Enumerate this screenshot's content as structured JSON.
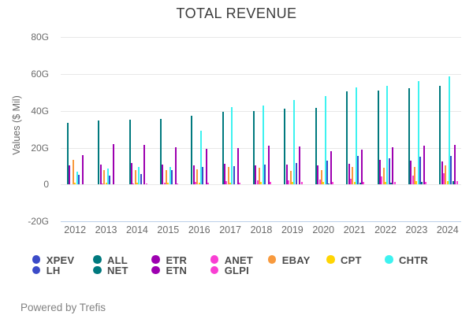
{
  "title": "TOTAL REVENUE",
  "footer": "Powered by Trefis",
  "chart_data": {
    "type": "bar",
    "title": "TOTAL REVENUE",
    "xlabel": "",
    "ylabel": "Values ($ Mil)",
    "unit": "G (billions of $)",
    "ylim": [
      -20,
      80
    ],
    "grid": true,
    "legend_position": "bottom",
    "y_ticks": [
      {
        "label": "80G",
        "value": 80
      },
      {
        "label": "60G",
        "value": 60
      },
      {
        "label": "40G",
        "value": 40
      },
      {
        "label": "20G",
        "value": 20
      },
      {
        "label": "0",
        "value": 0
      },
      {
        "label": "-20G",
        "value": -20
      }
    ],
    "categories": [
      2012,
      2013,
      2014,
      2015,
      2016,
      2017,
      2018,
      2019,
      2020,
      2021,
      2022,
      2023,
      2024
    ],
    "series": [
      {
        "name": "XPEV",
        "color": "#3b4bc8",
        "values": [
          0,
          0,
          0,
          0,
          0,
          0,
          0,
          0,
          0.1,
          0.2,
          0.2,
          0.3,
          0.3
        ]
      },
      {
        "name": "ALL",
        "color": "#00797e",
        "values": [
          33.4,
          34.5,
          35.2,
          35.6,
          37.3,
          39.4,
          39.9,
          41.2,
          41.6,
          50.4,
          51.0,
          52.3,
          53.4
        ]
      },
      {
        "name": "ETR",
        "color": "#9d00b0",
        "values": [
          10.1,
          10.5,
          11.7,
          10.7,
          10.1,
          11.0,
          10.4,
          10.7,
          10.3,
          11.3,
          13.1,
          13.0,
          12.5
        ]
      },
      {
        "name": "ANET",
        "color": "#f93fd3",
        "values": [
          0,
          0.4,
          0.6,
          0.9,
          1.2,
          1.8,
          2.1,
          2.3,
          2.6,
          2.9,
          4.2,
          4.7,
          5.8
        ]
      },
      {
        "name": "EBAY",
        "color": "#f89a3e",
        "values": [
          13.4,
          7.9,
          7.7,
          7.9,
          8.2,
          9.4,
          8.8,
          7.4,
          7.9,
          9.5,
          9.0,
          9.4,
          10.1
        ]
      },
      {
        "name": "CPT",
        "color": "#ffd503",
        "values": [
          0.7,
          0.7,
          0.8,
          0.9,
          1.0,
          1.0,
          1.1,
          1.1,
          1.1,
          1.2,
          1.4,
          1.5,
          1.6
        ]
      },
      {
        "name": "CHTR",
        "color": "#3df2f0",
        "values": [
          7.0,
          8.6,
          9.2,
          9.2,
          28.9,
          42.0,
          42.9,
          45.8,
          47.8,
          52.8,
          53.4,
          55.9,
          58.8
        ]
      },
      {
        "name": "LH",
        "color": "#3b4bc8",
        "values": [
          5.0,
          4.9,
          5.5,
          7.9,
          9.3,
          10.0,
          10.7,
          11.5,
          12.7,
          15.2,
          14.3,
          15.0,
          15.5
        ]
      },
      {
        "name": "NET",
        "color": "#00797e",
        "values": [
          0,
          0,
          0,
          0,
          0.1,
          0.1,
          0.2,
          0.3,
          0.4,
          0.7,
          1.0,
          1.3,
          1.7
        ]
      },
      {
        "name": "ETN",
        "color": "#9d00b0",
        "values": [
          16.0,
          21.8,
          21.5,
          20.2,
          19.3,
          19.8,
          21.0,
          20.7,
          18.0,
          18.7,
          20.1,
          20.8,
          21.3
        ]
      },
      {
        "name": "GLPI",
        "color": "#f93fd3",
        "values": [
          0,
          0,
          0.6,
          0.6,
          0.8,
          1.0,
          1.1,
          1.2,
          1.2,
          1.2,
          1.3,
          1.4,
          1.5
        ]
      }
    ],
    "legend_rows": [
      [
        "XPEV",
        "ALL",
        "ETR",
        "ANET",
        "EBAY",
        "CPT",
        "CHTR"
      ],
      [
        "LH",
        "NET",
        "ETN",
        "GLPI"
      ]
    ]
  }
}
